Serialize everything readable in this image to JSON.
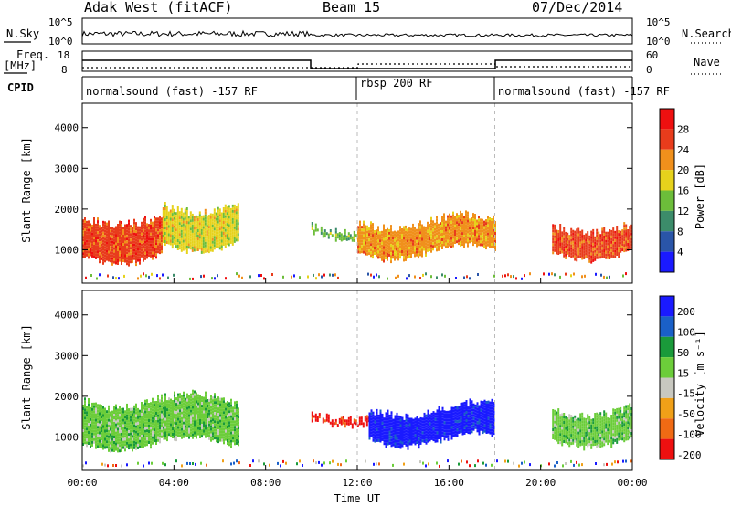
{
  "header": {
    "station": "Adak West (fitACF)",
    "beam": "Beam 15",
    "date": "07/Dec/2014"
  },
  "panels": {
    "nsky_label": "N.Sky",
    "nsearch_label": "N.Search",
    "freq_label_1": "Freq.",
    "freq_label_2": "[MHz]",
    "nave_label": "Nave",
    "cpid_label": "CPID",
    "nsky_ticks": [
      "10^5",
      "10^0"
    ],
    "nsearch_ticks": [
      "10^5",
      "10^0"
    ],
    "freq_ticks": [
      "18",
      "8"
    ],
    "nave_ticks": [
      "60",
      "0"
    ],
    "cpid_segments": [
      {
        "label": "normalsound (fast) -157 RF",
        "start": 0,
        "end": 12
      },
      {
        "label": "rbsp 200 RF",
        "start": 12,
        "end": 18
      },
      {
        "label": "normalsound (fast) -157 RF",
        "start": 18,
        "end": 24
      }
    ]
  },
  "chart_data": [
    {
      "type": "heatmap",
      "title": "",
      "xlabel": "",
      "ylabel": "Slant Range [km]",
      "xlim": [
        0,
        24
      ],
      "ylim": [
        180,
        4600
      ],
      "yticks": [
        "1000",
        "2000",
        "3000",
        "4000"
      ],
      "colorbar_label": "Power [dB]",
      "colorbar_ticks": [
        "4",
        "8",
        "12",
        "16",
        "20",
        "24",
        "28"
      ],
      "colors": [
        "#1a1aff",
        "#2a55a8",
        "#3c8c6a",
        "#6cbd3a",
        "#e6d21c",
        "#f0901c",
        "#e83c1c",
        "#ee1010"
      ],
      "bands": [
        {
          "x_start": 0,
          "x_end": 3.5,
          "y_low": 800,
          "y_high": 1900,
          "level": 29
        },
        {
          "x_start": 3.5,
          "x_end": 6.8,
          "y_low": 1100,
          "y_high": 2200,
          "level": 18
        },
        {
          "x_start": 10,
          "x_end": 12,
          "y_low": 1400,
          "y_high": 1700,
          "level": 14
        },
        {
          "x_start": 12,
          "x_end": 18,
          "y_low": 900,
          "y_high": 1800,
          "level": 22
        },
        {
          "x_start": 20.5,
          "x_end": 24,
          "y_low": 900,
          "y_high": 1700,
          "level": 29
        }
      ]
    },
    {
      "type": "heatmap",
      "title": "",
      "xlabel": "Time UT",
      "ylabel": "Slant Range [km]",
      "xlim": [
        0,
        24
      ],
      "ylim": [
        180,
        4600
      ],
      "xticks": [
        "00:00",
        "04:00",
        "08:00",
        "12:00",
        "16:00",
        "20:00",
        "00:00"
      ],
      "yticks": [
        "1000",
        "2000",
        "3000",
        "4000"
      ],
      "colorbar_label": "Velocity [m s⁻¹]",
      "colorbar_ticks": [
        "200",
        "100",
        "50",
        "15",
        "-15",
        "-50",
        "-100",
        "-200"
      ],
      "colors": [
        "#1a1aff",
        "#1a60c8",
        "#1a9a3a",
        "#6ccd3a",
        "#c8c8c0",
        "#f0a018",
        "#f06a14",
        "#ee1010"
      ],
      "bands": [
        {
          "x_start": 0,
          "x_end": 6.8,
          "y_low": 800,
          "y_high": 2000,
          "level": 0
        },
        {
          "x_start": 10,
          "x_end": 12.5,
          "y_low": 1400,
          "y_high": 1700,
          "level": -200
        },
        {
          "x_start": 12.5,
          "x_end": 18,
          "y_low": 900,
          "y_high": 1800,
          "level": 150
        },
        {
          "x_start": 20.5,
          "x_end": 24,
          "y_low": 900,
          "y_high": 1800,
          "level": 0
        }
      ]
    }
  ]
}
